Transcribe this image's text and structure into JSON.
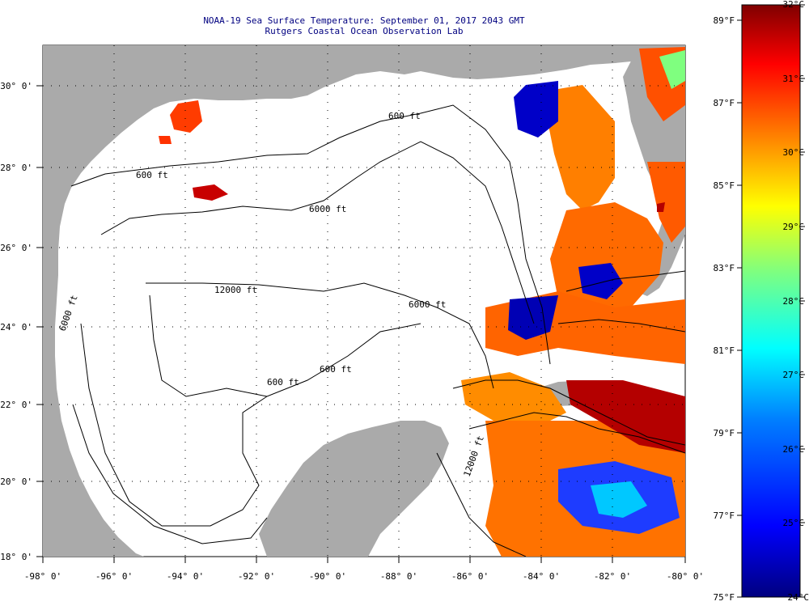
{
  "title": {
    "line1": "NOAA-19 Sea Surface Temperature:  September 01, 2017 2043 GMT",
    "line2": "Rutgers Coastal Ocean Observation Lab"
  },
  "map": {
    "region": "Gulf of Mexico",
    "lon_labels": [
      "-98° 0'",
      "-96° 0'",
      "-94° 0'",
      "-92° 0'",
      "-90° 0'",
      "-88° 0'",
      "-86° 0'",
      "-84° 0'",
      "-82° 0'",
      "-80° 0'"
    ],
    "lat_labels": [
      "30° 0'",
      "28° 0'",
      "26° 0'",
      "24° 0'",
      "22° 0'",
      "20° 0'",
      "18° 0'"
    ],
    "contour_labels": [
      "600 ft",
      "600 ft",
      "6000 ft",
      "12000 ft",
      "6000 ft",
      "600 ft",
      "600 ft",
      "6000 ft",
      "12000 ft"
    ],
    "colors": {
      "land": "#aaaaaa",
      "cloud": "#ffffff"
    }
  },
  "colorbar": {
    "celsius": [
      "32°C",
      "31°C",
      "30°C",
      "29°C",
      "28°C",
      "27°C",
      "26°C",
      "25°C",
      "24°C"
    ],
    "fahrenheit": [
      "89°F",
      "87°F",
      "85°F",
      "83°F",
      "81°F",
      "79°F",
      "77°F",
      "75°F"
    ],
    "colors": [
      "#00007f",
      "#0000ff",
      "#007fff",
      "#00ffff",
      "#7fff7f",
      "#ffff00",
      "#ff7f00",
      "#ff0000",
      "#7f0000"
    ]
  }
}
